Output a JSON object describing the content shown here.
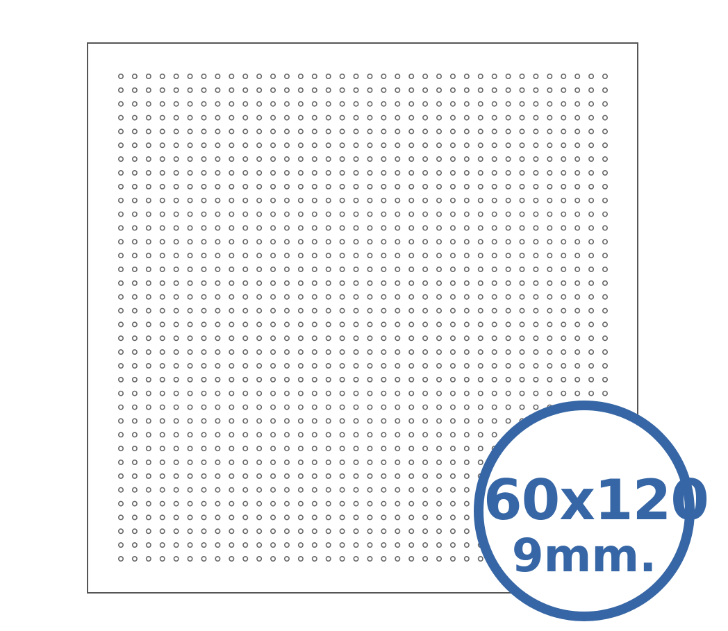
{
  "badge": {
    "size_label": "60x120",
    "thickness_label": "9mm."
  },
  "colors": {
    "accent": "#3666a5",
    "panel_border": "#555555",
    "hole": "#666666",
    "background": "#ffffff"
  }
}
